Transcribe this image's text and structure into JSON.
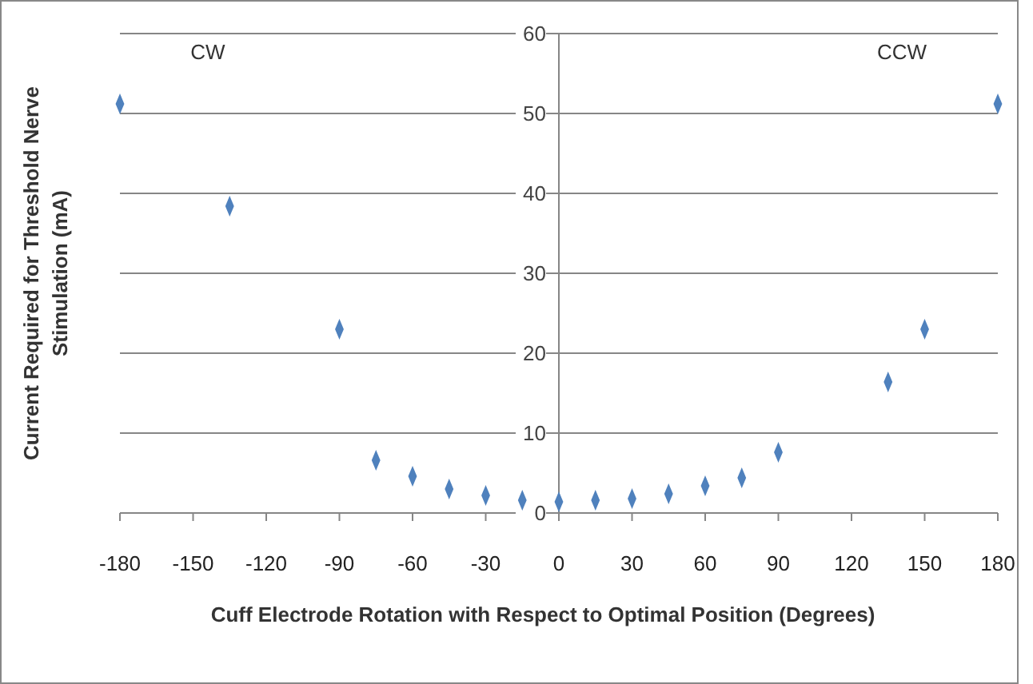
{
  "chart_data": {
    "type": "scatter",
    "xlabel": "Cuff Electrode Rotation with Respect to Optimal Position (Degrees)",
    "ylabel": "Current Required for Threshold Nerve Stimulation (mA)",
    "x": [
      -180,
      -135,
      -90,
      -75,
      -60,
      -45,
      -30,
      -15,
      0,
      15,
      30,
      45,
      60,
      75,
      90,
      135,
      150,
      180
    ],
    "series": [
      {
        "color": "#4f81bd",
        "values": [
          51.2,
          38.4,
          23,
          6.6,
          4.6,
          3,
          2.2,
          1.6,
          1.4,
          1.6,
          1.8,
          2.4,
          3.4,
          4.4,
          7.6,
          16.4,
          23,
          51.2
        ]
      }
    ],
    "xlim": [
      -180,
      180
    ],
    "xticks": [
      -180,
      -150,
      -120,
      -90,
      -60,
      -30,
      0,
      30,
      60,
      90,
      120,
      150,
      180
    ],
    "ylim": [
      0,
      60
    ],
    "yticks": [
      0,
      10,
      20,
      30,
      40,
      50,
      60
    ],
    "grid": "y",
    "marker": "diamond",
    "annotations": [
      "CW",
      "CCW"
    ]
  }
}
